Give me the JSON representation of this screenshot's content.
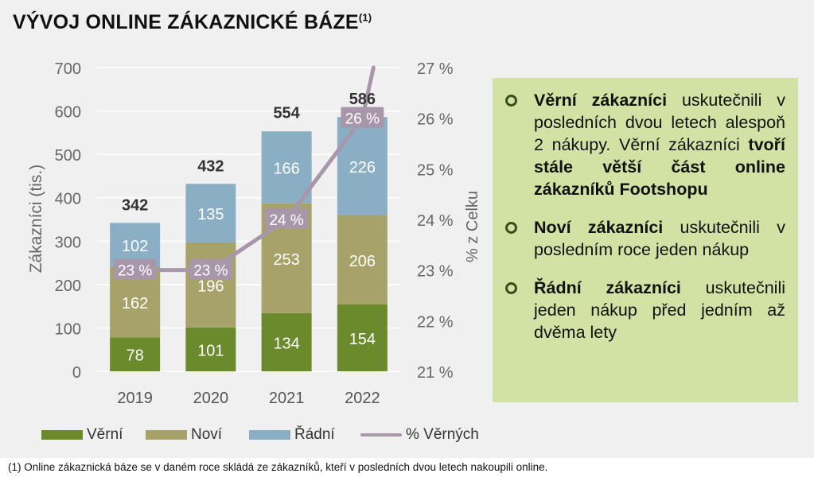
{
  "title": "VÝVOJ ONLINE ZÁKAZNICKÉ BÁZE",
  "title_note": "(1)",
  "colors": {
    "verni": "#6b8a2c",
    "novi": "#a7a16a",
    "radni": "#8aaec4",
    "line": "#a896ab",
    "info_bg": "#d1e2a4"
  },
  "chart_data": {
    "type": "bar",
    "stacked": true,
    "categories": [
      "2019",
      "2020",
      "2021",
      "2022"
    ],
    "series": [
      {
        "name": "Věrní",
        "values": [
          78,
          101,
          134,
          154
        ]
      },
      {
        "name": "Noví",
        "values": [
          162,
          196,
          253,
          206
        ]
      },
      {
        "name": "Řádní",
        "values": [
          102,
          135,
          166,
          226
        ]
      }
    ],
    "totals": [
      342,
      432,
      554,
      586
    ],
    "line_series": {
      "name": "% Věrných",
      "values": [
        23,
        23,
        24,
        26
      ],
      "labels": [
        "23 %",
        "23 %",
        "24 %",
        "26 %"
      ],
      "line_end": 27
    },
    "ylabel": "Zákazníci (tis.)",
    "y2label": "% z Celku",
    "ylim": [
      0,
      700
    ],
    "yticks": [
      "0",
      "100",
      "200",
      "300",
      "400",
      "500",
      "600",
      "700"
    ],
    "y2lim": [
      21,
      27
    ],
    "y2ticks": [
      "21 %",
      "22 %",
      "23 %",
      "24 %",
      "25 %",
      "26 %",
      "27 %"
    ],
    "grid": true,
    "legend": "bottom"
  },
  "legend": [
    {
      "label": "Věrní",
      "kind": "swatch",
      "color": "#6b8a2c"
    },
    {
      "label": "Noví",
      "kind": "swatch",
      "color": "#a7a16a"
    },
    {
      "label": "Řádní",
      "kind": "swatch",
      "color": "#8aaec4"
    },
    {
      "label": "% Věrných",
      "kind": "line",
      "color": "#a896ab"
    }
  ],
  "info": {
    "item1": {
      "bold1": "Věrní zákazníci",
      "text1": " uskutečnili v posledních dvou letech alespoň 2 nákupy. Věrní zákazníci ",
      "bold2": "tvoří stále větší část online zákazníků Footshopu"
    },
    "item2": {
      "bold1": "Noví zákazníci",
      "text1": " uskutečnili v posledním roce jeden nákup"
    },
    "item3": {
      "bold1": "Řádní zákazníci",
      "text1": " uskutečnili jeden nákup před jedním až dvěma lety"
    }
  },
  "footnote": "(1) Online zákaznická báze se v daném roce skládá ze zákazníků, kteří v posledních dvou letech nakoupili online."
}
